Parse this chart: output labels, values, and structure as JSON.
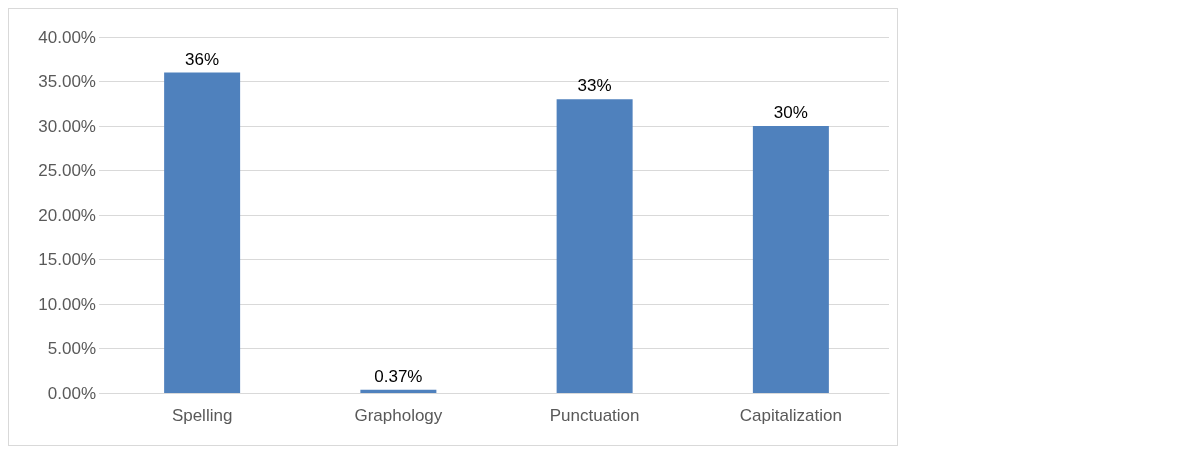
{
  "chart_data": {
    "type": "bar",
    "categories": [
      "Spelling",
      "Graphology",
      "Punctuation",
      "Capitalization"
    ],
    "values": [
      36,
      0.37,
      33,
      30
    ],
    "color": "#4f81bd",
    "value_labels": [
      "36%",
      "0.37%",
      "33%",
      "30%"
    ],
    "ylim": [
      0,
      40
    ],
    "yticks": [
      {
        "value": 0,
        "label": "0.00%"
      },
      {
        "value": 5,
        "label": "5.00%"
      },
      {
        "value": 10,
        "label": "10.00%"
      },
      {
        "value": 15,
        "label": "15.00%"
      },
      {
        "value": 20,
        "label": "20.00%"
      },
      {
        "value": 25,
        "label": "25.00%"
      },
      {
        "value": 30,
        "label": "30.00%"
      },
      {
        "value": 35,
        "label": "35.00%"
      },
      {
        "value": 40,
        "label": "40.00%"
      }
    ],
    "grid": "y"
  }
}
